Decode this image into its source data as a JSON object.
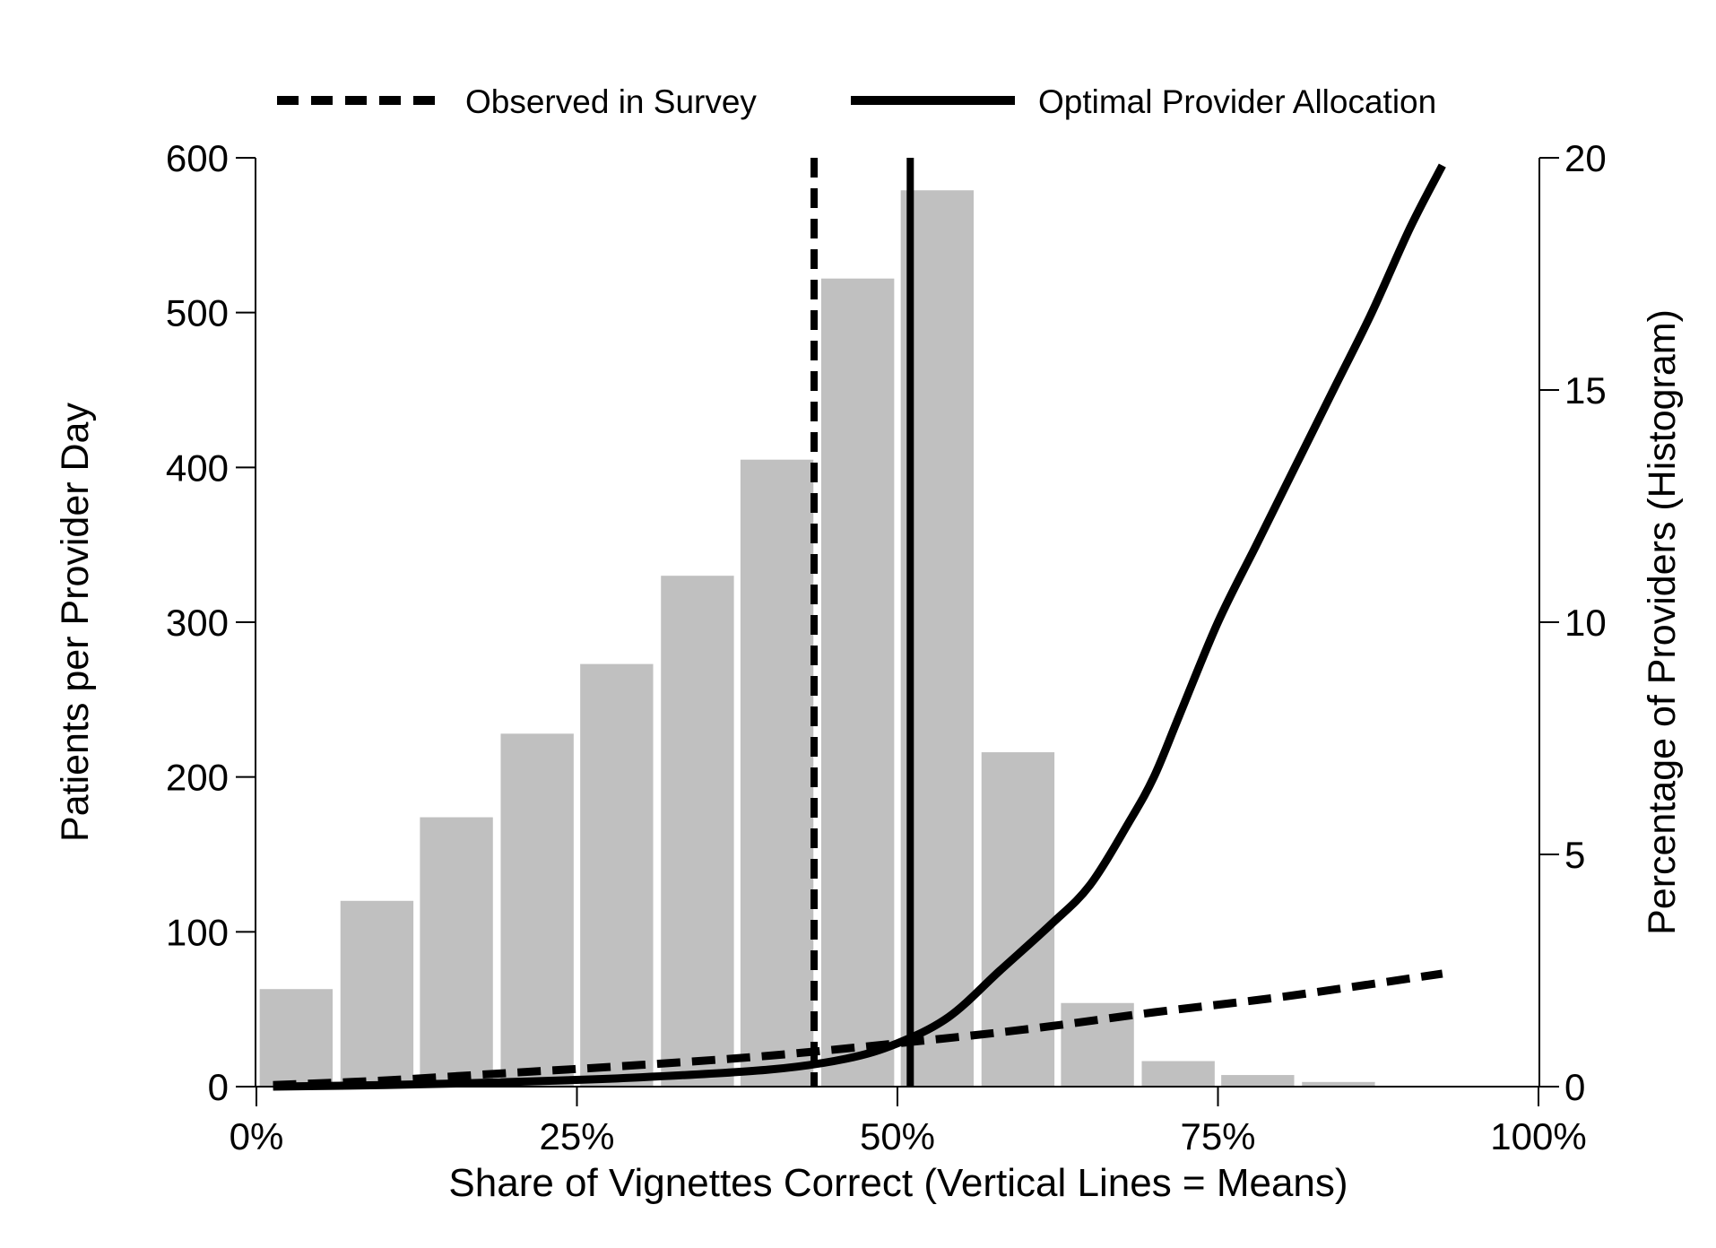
{
  "chart_data": {
    "type": "bar",
    "title": "",
    "xlabel": "Share of Vignettes Correct (Vertical Lines = Means)",
    "ylabel": "Patients per Provider Day",
    "y2label": "Percentage of Providers (Histogram)",
    "xlim": [
      0,
      100
    ],
    "ylim": [
      0,
      600
    ],
    "y2lim": [
      0,
      20
    ],
    "x_ticks": [
      0,
      25,
      50,
      75,
      100
    ],
    "x_tick_labels": [
      "0%",
      "25%",
      "50%",
      "75%",
      "100%"
    ],
    "y_ticks": [
      0,
      100,
      200,
      300,
      400,
      500,
      600
    ],
    "y_tick_labels": [
      "0",
      "100",
      "200",
      "300",
      "400",
      "500",
      "600"
    ],
    "y2_ticks": [
      0,
      5,
      10,
      15,
      20
    ],
    "y2_tick_labels": [
      "0",
      "5",
      "10",
      "15",
      "20"
    ],
    "grid": false,
    "legend_position": "top",
    "histogram": {
      "name": "Percentage of Providers",
      "axis": "right",
      "color": "#c0c0c0",
      "bin_width": 6.25,
      "bins": [
        {
          "x": 3.1,
          "value": 2.1
        },
        {
          "x": 9.4,
          "value": 4.0
        },
        {
          "x": 15.6,
          "value": 5.8
        },
        {
          "x": 21.9,
          "value": 7.6
        },
        {
          "x": 28.1,
          "value": 9.1
        },
        {
          "x": 34.4,
          "value": 11.0
        },
        {
          "x": 40.6,
          "value": 13.5
        },
        {
          "x": 46.9,
          "value": 17.4
        },
        {
          "x": 53.1,
          "value": 19.3
        },
        {
          "x": 59.4,
          "value": 7.2
        },
        {
          "x": 65.6,
          "value": 1.8
        },
        {
          "x": 71.9,
          "value": 0.55
        },
        {
          "x": 78.1,
          "value": 0.25
        },
        {
          "x": 84.4,
          "value": 0.1
        }
      ]
    },
    "series": [
      {
        "name": "Observed in Survey",
        "axis": "left",
        "style": "dashed",
        "color": "#000000",
        "points": [
          [
            1.3,
            1
          ],
          [
            10,
            4
          ],
          [
            20,
            9
          ],
          [
            30,
            14
          ],
          [
            40,
            20
          ],
          [
            50,
            28
          ],
          [
            60,
            37
          ],
          [
            70,
            48
          ],
          [
            80,
            58
          ],
          [
            92.5,
            73
          ]
        ]
      },
      {
        "name": "Optimal Provider Allocation",
        "axis": "left",
        "style": "solid",
        "color": "#000000",
        "points": [
          [
            1.3,
            0
          ],
          [
            10,
            1
          ],
          [
            20,
            3
          ],
          [
            30,
            6
          ],
          [
            40,
            11
          ],
          [
            46,
            18
          ],
          [
            50,
            28
          ],
          [
            54,
            45
          ],
          [
            58,
            75
          ],
          [
            62,
            105
          ],
          [
            65,
            130
          ],
          [
            68,
            170
          ],
          [
            70,
            200
          ],
          [
            72,
            240
          ],
          [
            75,
            300
          ],
          [
            78,
            350
          ],
          [
            81,
            400
          ],
          [
            84,
            450
          ],
          [
            87,
            500
          ],
          [
            90,
            555
          ],
          [
            92.5,
            595
          ]
        ]
      }
    ],
    "vertical_lines": [
      {
        "name": "Observed in Survey",
        "x": 43.5,
        "style": "dashed"
      },
      {
        "name": "Optimal Provider Allocation",
        "x": 51.0,
        "style": "solid"
      }
    ]
  }
}
